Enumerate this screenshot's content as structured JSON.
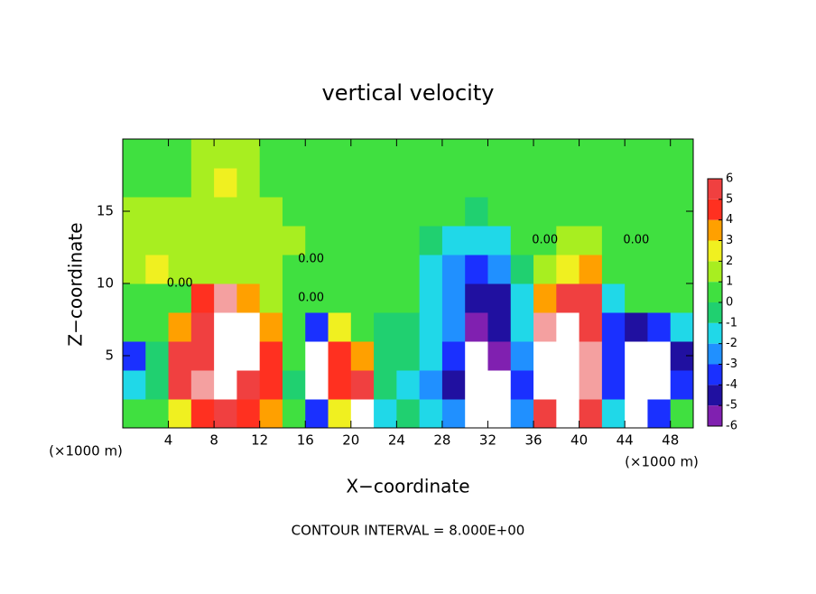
{
  "chart_data": {
    "type": "heatmap",
    "title": "vertical velocity",
    "x_label": "X−coordinate",
    "y_label": "Z−coordinate",
    "x_unit": "(×1000 m)",
    "y_unit": "(×1000 m)",
    "footnote": "CONTOUR INTERVAL = 8.000E+00",
    "xlim": [
      0,
      50
    ],
    "ylim": [
      0,
      20
    ],
    "xticks": [
      4,
      8,
      12,
      16,
      20,
      24,
      28,
      32,
      36,
      40,
      44,
      48
    ],
    "yticks": [
      5,
      10,
      15
    ],
    "x": [
      1,
      3,
      5,
      7,
      9,
      11,
      13,
      15,
      17,
      19,
      21,
      23,
      25,
      27,
      29,
      31,
      33,
      35,
      37,
      39,
      41,
      43,
      45,
      47,
      49
    ],
    "y": [
      1,
      3,
      5,
      7,
      9,
      11,
      13,
      15,
      17,
      19
    ],
    "values": [
      [
        0,
        0,
        2,
        4,
        5,
        4,
        3,
        0,
        -4,
        2,
        10,
        -2,
        -1,
        -2,
        -3,
        -10,
        -10,
        -3,
        5,
        10,
        5,
        -2,
        -10,
        -4,
        0
      ],
      [
        -2,
        -1,
        5,
        6,
        10,
        5,
        4,
        -1,
        -10,
        4,
        5,
        -1,
        -2,
        -3,
        -5,
        -10,
        -10,
        -4,
        10,
        10,
        6,
        -4,
        -10,
        -10,
        -4
      ],
      [
        -4,
        -1,
        5,
        5,
        10,
        10,
        4,
        0,
        -10,
        4,
        3,
        -1,
        -1,
        -2,
        -4,
        -10,
        -6,
        -3,
        10,
        10,
        6,
        -4,
        -10,
        -10,
        -5
      ],
      [
        0,
        0,
        3,
        5,
        10,
        10,
        3,
        0,
        -4,
        2,
        0,
        -1,
        -1,
        -2,
        -3,
        -6,
        -5,
        -2,
        6,
        10,
        5,
        -4,
        -5,
        -4,
        -2
      ],
      [
        0,
        0,
        0,
        4,
        6,
        3,
        1,
        0,
        0,
        0,
        0,
        0,
        0,
        -2,
        -3,
        -5,
        -5,
        -2,
        3,
        5,
        5,
        -2,
        0,
        0,
        0
      ],
      [
        1,
        2,
        1,
        1,
        1,
        1,
        1,
        0,
        0,
        0,
        0,
        0,
        0,
        -2,
        -3,
        -4,
        -3,
        -1,
        1,
        2,
        3,
        0,
        0,
        0,
        0
      ],
      [
        1,
        1,
        1,
        1,
        1,
        1,
        1,
        1,
        0,
        0,
        0,
        0,
        0,
        -1,
        -2,
        -2,
        -2,
        0,
        0,
        1,
        1,
        0,
        0,
        0,
        0
      ],
      [
        1,
        1,
        1,
        1,
        1,
        1,
        1,
        0,
        0,
        0,
        0,
        0,
        0,
        0,
        0,
        -1,
        0,
        0,
        0,
        0,
        0,
        0,
        0,
        0,
        0
      ],
      [
        0,
        0,
        0,
        1,
        2,
        1,
        0,
        0,
        0,
        0,
        0,
        0,
        0,
        0,
        0,
        0,
        0,
        0,
        0,
        0,
        0,
        0,
        0,
        0,
        0
      ],
      [
        0,
        0,
        0,
        1,
        1,
        1,
        0,
        0,
        0,
        0,
        0,
        0,
        0,
        0,
        0,
        0,
        0,
        0,
        0,
        0,
        0,
        0,
        0,
        0,
        0
      ]
    ],
    "colorbar_ticks": [
      -6,
      -5,
      -4,
      -3,
      -2,
      -1,
      0,
      1,
      2,
      3,
      4,
      5,
      6
    ],
    "colors": [
      "#8020b0",
      "#2010a0",
      "#1a30ff",
      "#2090ff",
      "#20d8e8",
      "#20d070",
      "#40e040",
      "#a8ee20",
      "#f0f020",
      "#ffa000",
      "#ff3020",
      "#f04040",
      "#f4a0a0"
    ],
    "out_of_range_color": "#ffffff",
    "contour_labels": [
      {
        "text": "0.00",
        "x": 5,
        "y": 10
      },
      {
        "text": "0.00",
        "x": 16.5,
        "y": 9
      },
      {
        "text": "0.00",
        "x": 16.5,
        "y": 11.7
      },
      {
        "text": "0.00",
        "x": 37,
        "y": 13
      },
      {
        "text": "0.00",
        "x": 45,
        "y": 13
      }
    ]
  }
}
